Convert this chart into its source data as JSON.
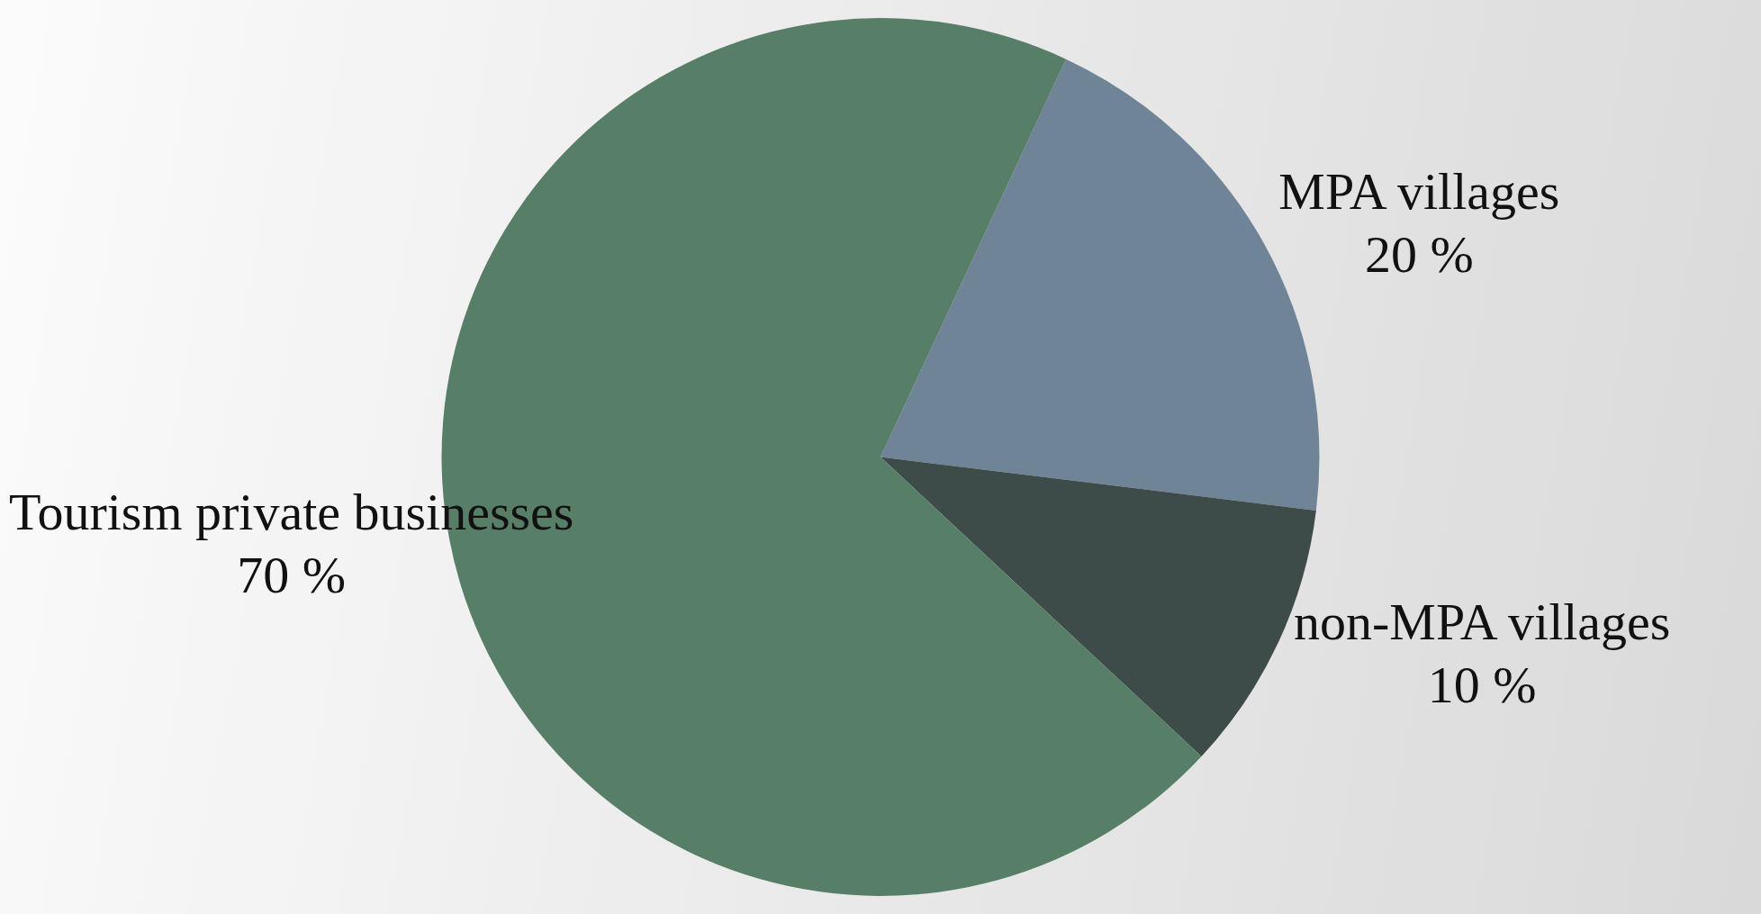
{
  "chart_data": {
    "type": "pie",
    "categories": [
      "MPA villages",
      "non-MPA villages",
      "Tourism private businesses"
    ],
    "values": [
      20,
      10,
      70
    ],
    "colors": [
      "#6f8496",
      "#3d4b49",
      "#577e66"
    ],
    "value_labels": [
      "20 %",
      "10 %",
      "70 %"
    ]
  }
}
